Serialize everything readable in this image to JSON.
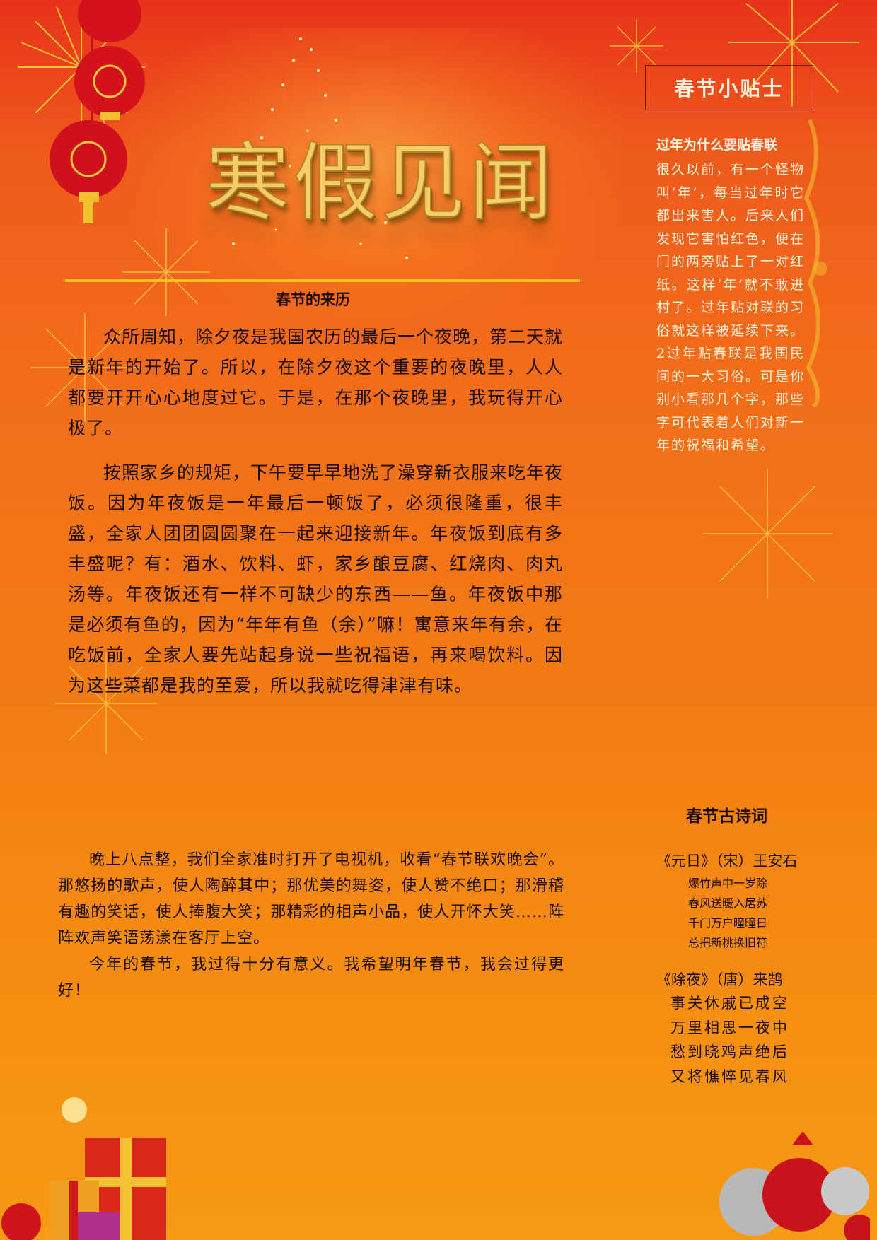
{
  "title": "寒假见闻",
  "main": {
    "heading": "春节的来历",
    "paragraphs": [
      "众所周知，除夕夜是我国农历的最后一个夜晚，第二天就是新年的开始了。所以，在除夕夜这个重要的夜晚里，人人都要开开心心地度过它。于是，在那个夜晚里，我玩得开心极了。",
      "按照家乡的规矩，下午要早早地洗了澡穿新衣服来吃年夜饭。因为年夜饭是一年最后一顿饭了，必须很隆重，很丰盛，全家人团团圆圆聚在一起来迎接新年。年夜饭到底有多丰盛呢？有：酒水、饮料、虾，家乡酿豆腐、红烧肉、肉丸汤等。年夜饭还有一样不可缺少的东西——鱼。年夜饭中那是必须有鱼的，因为“年年有鱼（余）”嘛！寓意来年有余，在吃饭前，全家人要先站起身说一些祝福语，再来喝饮料。因为这些菜都是我的至爱，所以我就吃得津津有味。"
    ],
    "evening": [
      "晚上八点整，我们全家准时打开了电视机，收看“春节联欢晚会”。那悠扬的歌声，使人陶醉其中；那优美的舞姿，使人赞不绝口；那滑稽有趣的笑话，使人捧腹大笑；那精彩的相声小品，使人开怀大笑……阵阵欢声笑语荡漾在客厅上空。",
      "今年的春节，我过得十分有意义。我希望明年春节，我会过得更好！"
    ]
  },
  "sidebar": {
    "tips_title": "春节小贴士",
    "tips_question": "过年为什么要贴春联",
    "tips_body": "很久以前，有一个怪物叫‘年’，每当过年时它都出来害人。后来人们发现它害怕红色，便在门的两旁贴上了一对红纸。这样‘年’就不敢进村了。过年贴对联的习俗就这样被延续下来。2过年贴春联是我国民间的一大习俗。可是你别小看那几个字，那些字可代表着人们对新一年的祝福和希望。",
    "poems_heading": "春节古诗词",
    "poem1": {
      "title": "《元日》（宋）王安石",
      "lines": [
        "爆竹声中一岁除",
        "春风送暖入屠苏",
        "千门万户曈曈日",
        "总把新桃换旧符"
      ]
    },
    "poem2": {
      "title": "《除夜》（唐）来鹄",
      "lines": [
        "事关休戚已成空",
        "万里相思一夜中",
        "愁到晓鸡声绝后",
        "又将憔悴见春风"
      ]
    }
  },
  "colors": {
    "background_top": "#e8321a",
    "background_bottom": "#f79a14",
    "rule": "#f5c21a",
    "title_gold": "#f4cc6a"
  }
}
